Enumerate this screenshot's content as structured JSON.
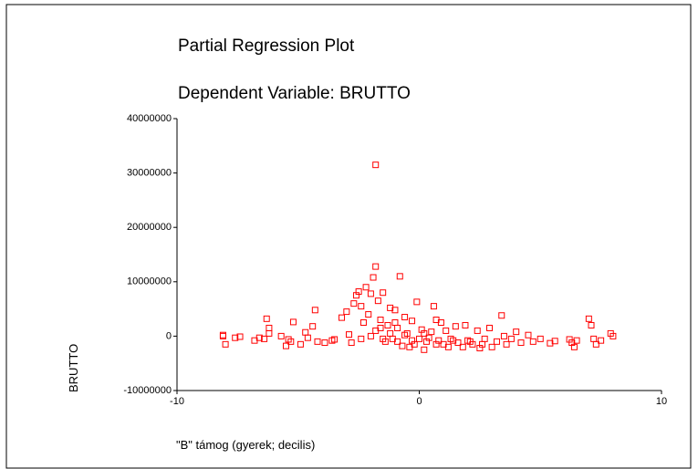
{
  "chart_data": {
    "type": "scatter",
    "title": "Partial Regression Plot",
    "subtitle": "Dependent Variable: BRUTTO",
    "x_label": "\"B\" támog (gyerek; decilis)",
    "y_label": "BRUTTO",
    "color": "#ff0000",
    "xlim": [
      -10,
      10
    ],
    "xticks": [
      -10,
      0,
      10
    ],
    "ylim": [
      -10000000,
      40000000
    ],
    "yticks": [
      -10000000,
      0,
      10000000,
      20000000,
      30000000,
      40000000
    ],
    "x": [
      -8.1,
      -8.0,
      -8.1,
      -7.6,
      -7.4,
      -6.8,
      -6.6,
      -6.4,
      -6.3,
      -6.2,
      -6.2,
      -5.7,
      -5.5,
      -5.4,
      -5.3,
      -5.2,
      -4.9,
      -4.7,
      -4.6,
      -4.4,
      -4.3,
      -4.2,
      -3.9,
      -3.6,
      -3.5,
      -3.2,
      -3.0,
      -2.9,
      -2.8,
      -2.7,
      -2.6,
      -2.5,
      -2.4,
      -2.3,
      -2.2,
      -2.1,
      -2.0,
      -1.9,
      -1.8,
      -1.8,
      -1.7,
      -1.6,
      -1.5,
      -1.4,
      -1.3,
      -1.2,
      -1.1,
      -1.0,
      -0.9,
      -0.8,
      -0.7,
      -0.6,
      -0.5,
      -0.4,
      -0.3,
      -0.2,
      -0.1,
      0.0,
      0.1,
      0.2,
      0.3,
      0.5,
      0.6,
      0.7,
      0.8,
      0.9,
      1.0,
      1.1,
      1.2,
      1.3,
      1.5,
      1.6,
      1.8,
      1.9,
      2.0,
      2.2,
      2.4,
      2.5,
      2.7,
      2.9,
      3.0,
      3.2,
      3.4,
      3.5,
      3.6,
      3.8,
      4.0,
      4.2,
      4.5,
      4.7,
      5.0,
      5.4,
      5.6,
      6.2,
      6.3,
      6.4,
      6.5,
      7.0,
      7.1,
      7.2,
      7.3,
      7.5,
      7.9,
      8.0,
      -2.0,
      -1.8,
      -1.5,
      -1.2,
      -0.9,
      -0.6,
      -0.3,
      0.4,
      0.7,
      1.4,
      2.1,
      2.6,
      -2.4,
      -1.6,
      -1.0,
      0.2
    ],
    "values": [
      0,
      -1500000,
      200000,
      -300000,
      -100000,
      -800000,
      -300000,
      -500000,
      3200000,
      1500000,
      500000,
      0,
      -1800000,
      -600000,
      -1000000,
      2600000,
      -1500000,
      700000,
      -300000,
      1800000,
      4800000,
      -1000000,
      -1200000,
      -800000,
      -600000,
      3400000,
      4500000,
      300000,
      -1200000,
      6000000,
      7500000,
      8200000,
      5500000,
      2500000,
      9000000,
      4000000,
      7800000,
      10800000,
      12800000,
      31500000,
      6500000,
      3000000,
      8000000,
      -1000000,
      2000000,
      5200000,
      -500000,
      4800000,
      1500000,
      11000000,
      -1800000,
      3500000,
      500000,
      -2000000,
      2800000,
      -1500000,
      6300000,
      -500000,
      1200000,
      -2500000,
      -1000000,
      800000,
      5500000,
      3000000,
      -800000,
      2500000,
      -1500000,
      1000000,
      -2000000,
      -500000,
      1800000,
      -1200000,
      -2000000,
      2000000,
      -800000,
      -1500000,
      1000000,
      -2200000,
      -500000,
      1500000,
      -2000000,
      -1000000,
      3800000,
      0,
      -1500000,
      -500000,
      800000,
      -1200000,
      200000,
      -1000000,
      -500000,
      -1300000,
      -900000,
      -600000,
      -1200000,
      -2000000,
      -800000,
      3200000,
      2000000,
      -500000,
      -1500000,
      -800000,
      500000,
      0,
      0,
      1000000,
      -500000,
      500000,
      -1000000,
      200000,
      -800000,
      -300000,
      -1500000,
      -800000,
      -1000000,
      -1500000,
      -500000,
      1500000,
      2500000,
      500000
    ]
  }
}
